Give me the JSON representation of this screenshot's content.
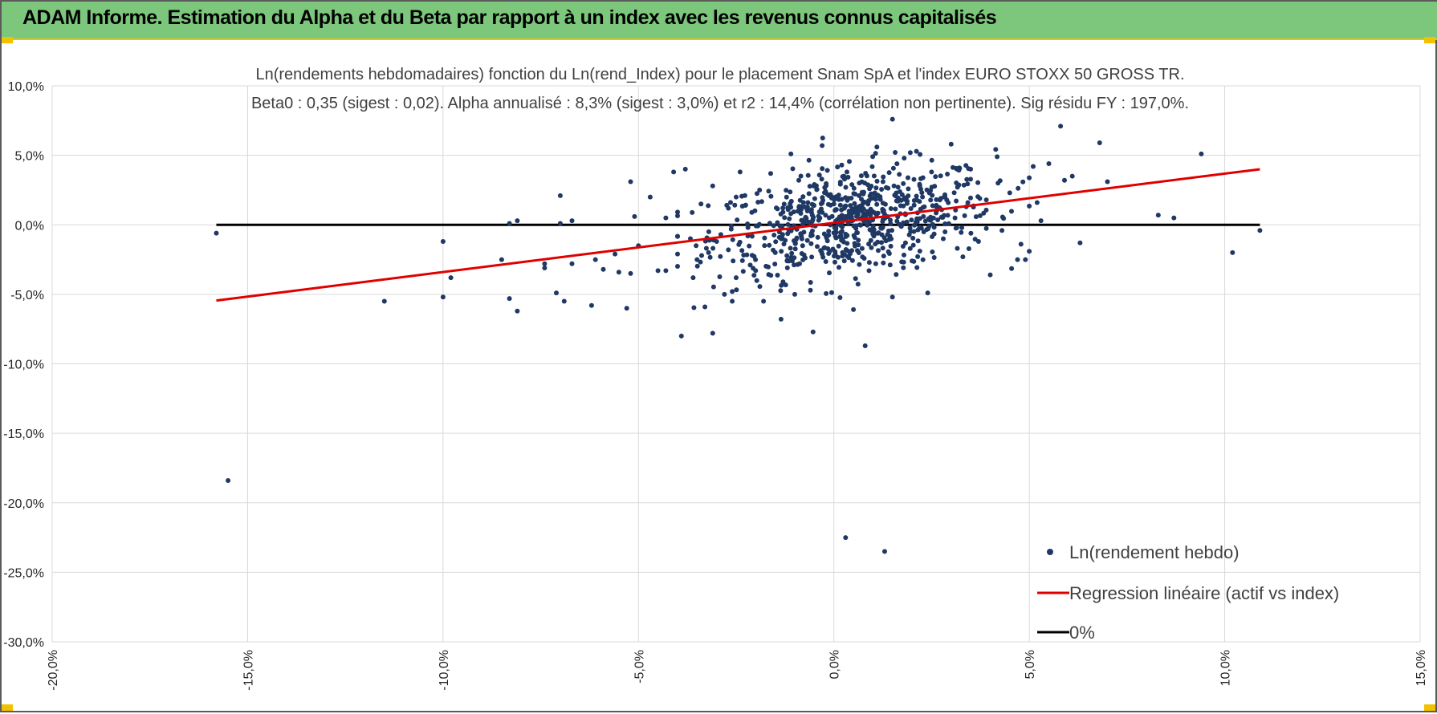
{
  "header": {
    "title": "ADAM Informe. Estimation du Alpha et du Beta par rapport à un index avec les revenus connus capitalisés"
  },
  "colors": {
    "header_bg": "#7dc77d",
    "accent": "#f2c200",
    "points": "#1f3864",
    "regression": "#e00000",
    "zero_line": "#000000",
    "grid": "#d9d9d9"
  },
  "chart_data": {
    "type": "scatter",
    "title_lines": [
      "Ln(rendements hebdomadaires) fonction du Ln(rend_Index) pour le placement Snam SpA et l'index EURO STOXX 50 GROSS TR.",
      "Beta0 : 0,35  (sigest : 0,02).  Alpha annualisé : 8,3% (sigest : 3,0%) et r2 : 14,4% (corrélation non pertinente). Sig résidu FY : 197,0%."
    ],
    "xlim": [
      -20,
      15
    ],
    "ylim": [
      -30,
      10
    ],
    "x_ticks": [
      -20,
      -15,
      -10,
      -5,
      0,
      5,
      10,
      15
    ],
    "x_tick_labels": [
      "-20,0%",
      "-15,0%",
      "-10,0%",
      "-5,0%",
      "0,0%",
      "5,0%",
      "10,0%",
      "15,0%"
    ],
    "y_ticks": [
      10,
      5,
      0,
      -5,
      -10,
      -15,
      -20,
      -25,
      -30
    ],
    "y_tick_labels": [
      "10,0%",
      "5,0%",
      "0,0%",
      "-5,0%",
      "-10,0%",
      "-15,0%",
      "-20,0%",
      "-25,0%",
      "-30,0%"
    ],
    "grid": true,
    "legend_position": "bottom-right",
    "series": [
      {
        "name": "Ln(rendement hebdo)",
        "kind": "scatter",
        "color": "#1f3864",
        "approximate_cluster": {
          "count": 700,
          "center": [
            0.5,
            0.3
          ],
          "x_spread": 1.8,
          "y_spread": 1.9,
          "slope": 0.35,
          "x_range": [
            -4,
            5
          ]
        },
        "points": [
          [
            -15.8,
            -0.6
          ],
          [
            -15.5,
            -18.4
          ],
          [
            -11.5,
            -5.5
          ],
          [
            -10.0,
            -1.2
          ],
          [
            -10.0,
            -5.2
          ],
          [
            -9.8,
            -3.8
          ],
          [
            -8.5,
            -2.5
          ],
          [
            -8.3,
            0.1
          ],
          [
            -8.3,
            -5.3
          ],
          [
            -8.1,
            0.3
          ],
          [
            -8.1,
            -6.2
          ],
          [
            -7.4,
            -2.8
          ],
          [
            -7.4,
            -3.1
          ],
          [
            -7.1,
            -4.9
          ],
          [
            -7.0,
            0.1
          ],
          [
            -7.0,
            2.1
          ],
          [
            -6.9,
            -5.5
          ],
          [
            -6.7,
            -2.8
          ],
          [
            -6.7,
            0.3
          ],
          [
            -6.2,
            -5.8
          ],
          [
            -6.1,
            -2.5
          ],
          [
            -5.9,
            -3.2
          ],
          [
            -5.6,
            -2.1
          ],
          [
            -5.5,
            -3.4
          ],
          [
            -5.3,
            -6.0
          ],
          [
            -5.2,
            3.1
          ],
          [
            -5.2,
            -3.5
          ],
          [
            -5.1,
            0.6
          ],
          [
            -5.0,
            -1.5
          ],
          [
            -4.7,
            2.0
          ],
          [
            -4.5,
            -3.3
          ],
          [
            -4.3,
            0.5
          ],
          [
            -4.3,
            -3.3
          ],
          [
            -4.1,
            3.8
          ],
          [
            -4.0,
            -2.1
          ],
          [
            -3.9,
            -8.0
          ],
          [
            -3.8,
            4.0
          ],
          [
            -3.6,
            -3.8
          ],
          [
            -3.5,
            -2.5
          ],
          [
            -3.4,
            1.5
          ],
          [
            -3.3,
            -5.9
          ],
          [
            -3.2,
            -0.5
          ],
          [
            -3.1,
            -7.8
          ],
          [
            -3.1,
            2.8
          ],
          [
            -3.0,
            -1.2
          ],
          [
            -2.8,
            -5.0
          ],
          [
            -2.7,
            -1.8
          ],
          [
            -2.7,
            1.2
          ],
          [
            -2.6,
            -4.8
          ],
          [
            -2.6,
            -5.5
          ],
          [
            -2.5,
            -3.8
          ],
          [
            -2.5,
            2.0
          ],
          [
            -2.4,
            3.8
          ],
          [
            -2.2,
            -0.8
          ],
          [
            -2.1,
            0.9
          ],
          [
            -2.0,
            -3.3
          ],
          [
            -1.9,
            2.5
          ],
          [
            -1.8,
            -5.5
          ],
          [
            -1.5,
            -2.0
          ],
          [
            -1.3,
            -4.1
          ],
          [
            -1.1,
            5.1
          ],
          [
            -1.0,
            -5.0
          ],
          [
            -0.8,
            -1.5
          ],
          [
            -0.6,
            -4.7
          ],
          [
            -0.5,
            2.9
          ],
          [
            -0.3,
            5.7
          ],
          [
            -0.2,
            -0.8
          ],
          [
            0.0,
            1.5
          ],
          [
            0.2,
            4.3
          ],
          [
            0.3,
            -22.5
          ],
          [
            0.5,
            -6.1
          ],
          [
            0.8,
            -8.7
          ],
          [
            0.9,
            -3.3
          ],
          [
            1.1,
            5.6
          ],
          [
            1.3,
            -23.5
          ],
          [
            1.5,
            7.6
          ],
          [
            1.5,
            -5.2
          ],
          [
            1.8,
            4.8
          ],
          [
            2.0,
            -2.6
          ],
          [
            2.2,
            2.8
          ],
          [
            2.4,
            -4.9
          ],
          [
            2.5,
            3.8
          ],
          [
            2.8,
            -1.0
          ],
          [
            3.0,
            5.8
          ],
          [
            3.1,
            0.5
          ],
          [
            3.3,
            -2.3
          ],
          [
            3.5,
            4.0
          ],
          [
            3.7,
            -1.2
          ],
          [
            3.9,
            1.8
          ],
          [
            4.0,
            -3.6
          ],
          [
            4.2,
            3.0
          ],
          [
            4.3,
            -0.4
          ],
          [
            4.5,
            2.3
          ],
          [
            4.7,
            -2.5
          ],
          [
            4.9,
            -2.5
          ],
          [
            5.1,
            4.2
          ],
          [
            5.2,
            1.6
          ],
          [
            5.3,
            0.3
          ],
          [
            5.5,
            4.4
          ],
          [
            5.8,
            7.1
          ],
          [
            5.9,
            3.2
          ],
          [
            6.1,
            3.5
          ],
          [
            6.3,
            -1.3
          ],
          [
            6.8,
            5.9
          ],
          [
            7.0,
            3.1
          ],
          [
            8.3,
            0.7
          ],
          [
            8.7,
            0.5
          ],
          [
            9.4,
            5.1
          ],
          [
            10.2,
            -2.0
          ],
          [
            10.9,
            -0.4
          ]
        ]
      },
      {
        "name": "Regression linéaire (actif vs index)",
        "kind": "line",
        "color": "#e00000",
        "x": [
          -15.8,
          10.9
        ],
        "y": [
          -5.45,
          4.0
        ]
      },
      {
        "name": "0%",
        "kind": "line",
        "color": "#000000",
        "x": [
          -15.8,
          10.9
        ],
        "y": [
          0,
          0
        ]
      }
    ]
  }
}
